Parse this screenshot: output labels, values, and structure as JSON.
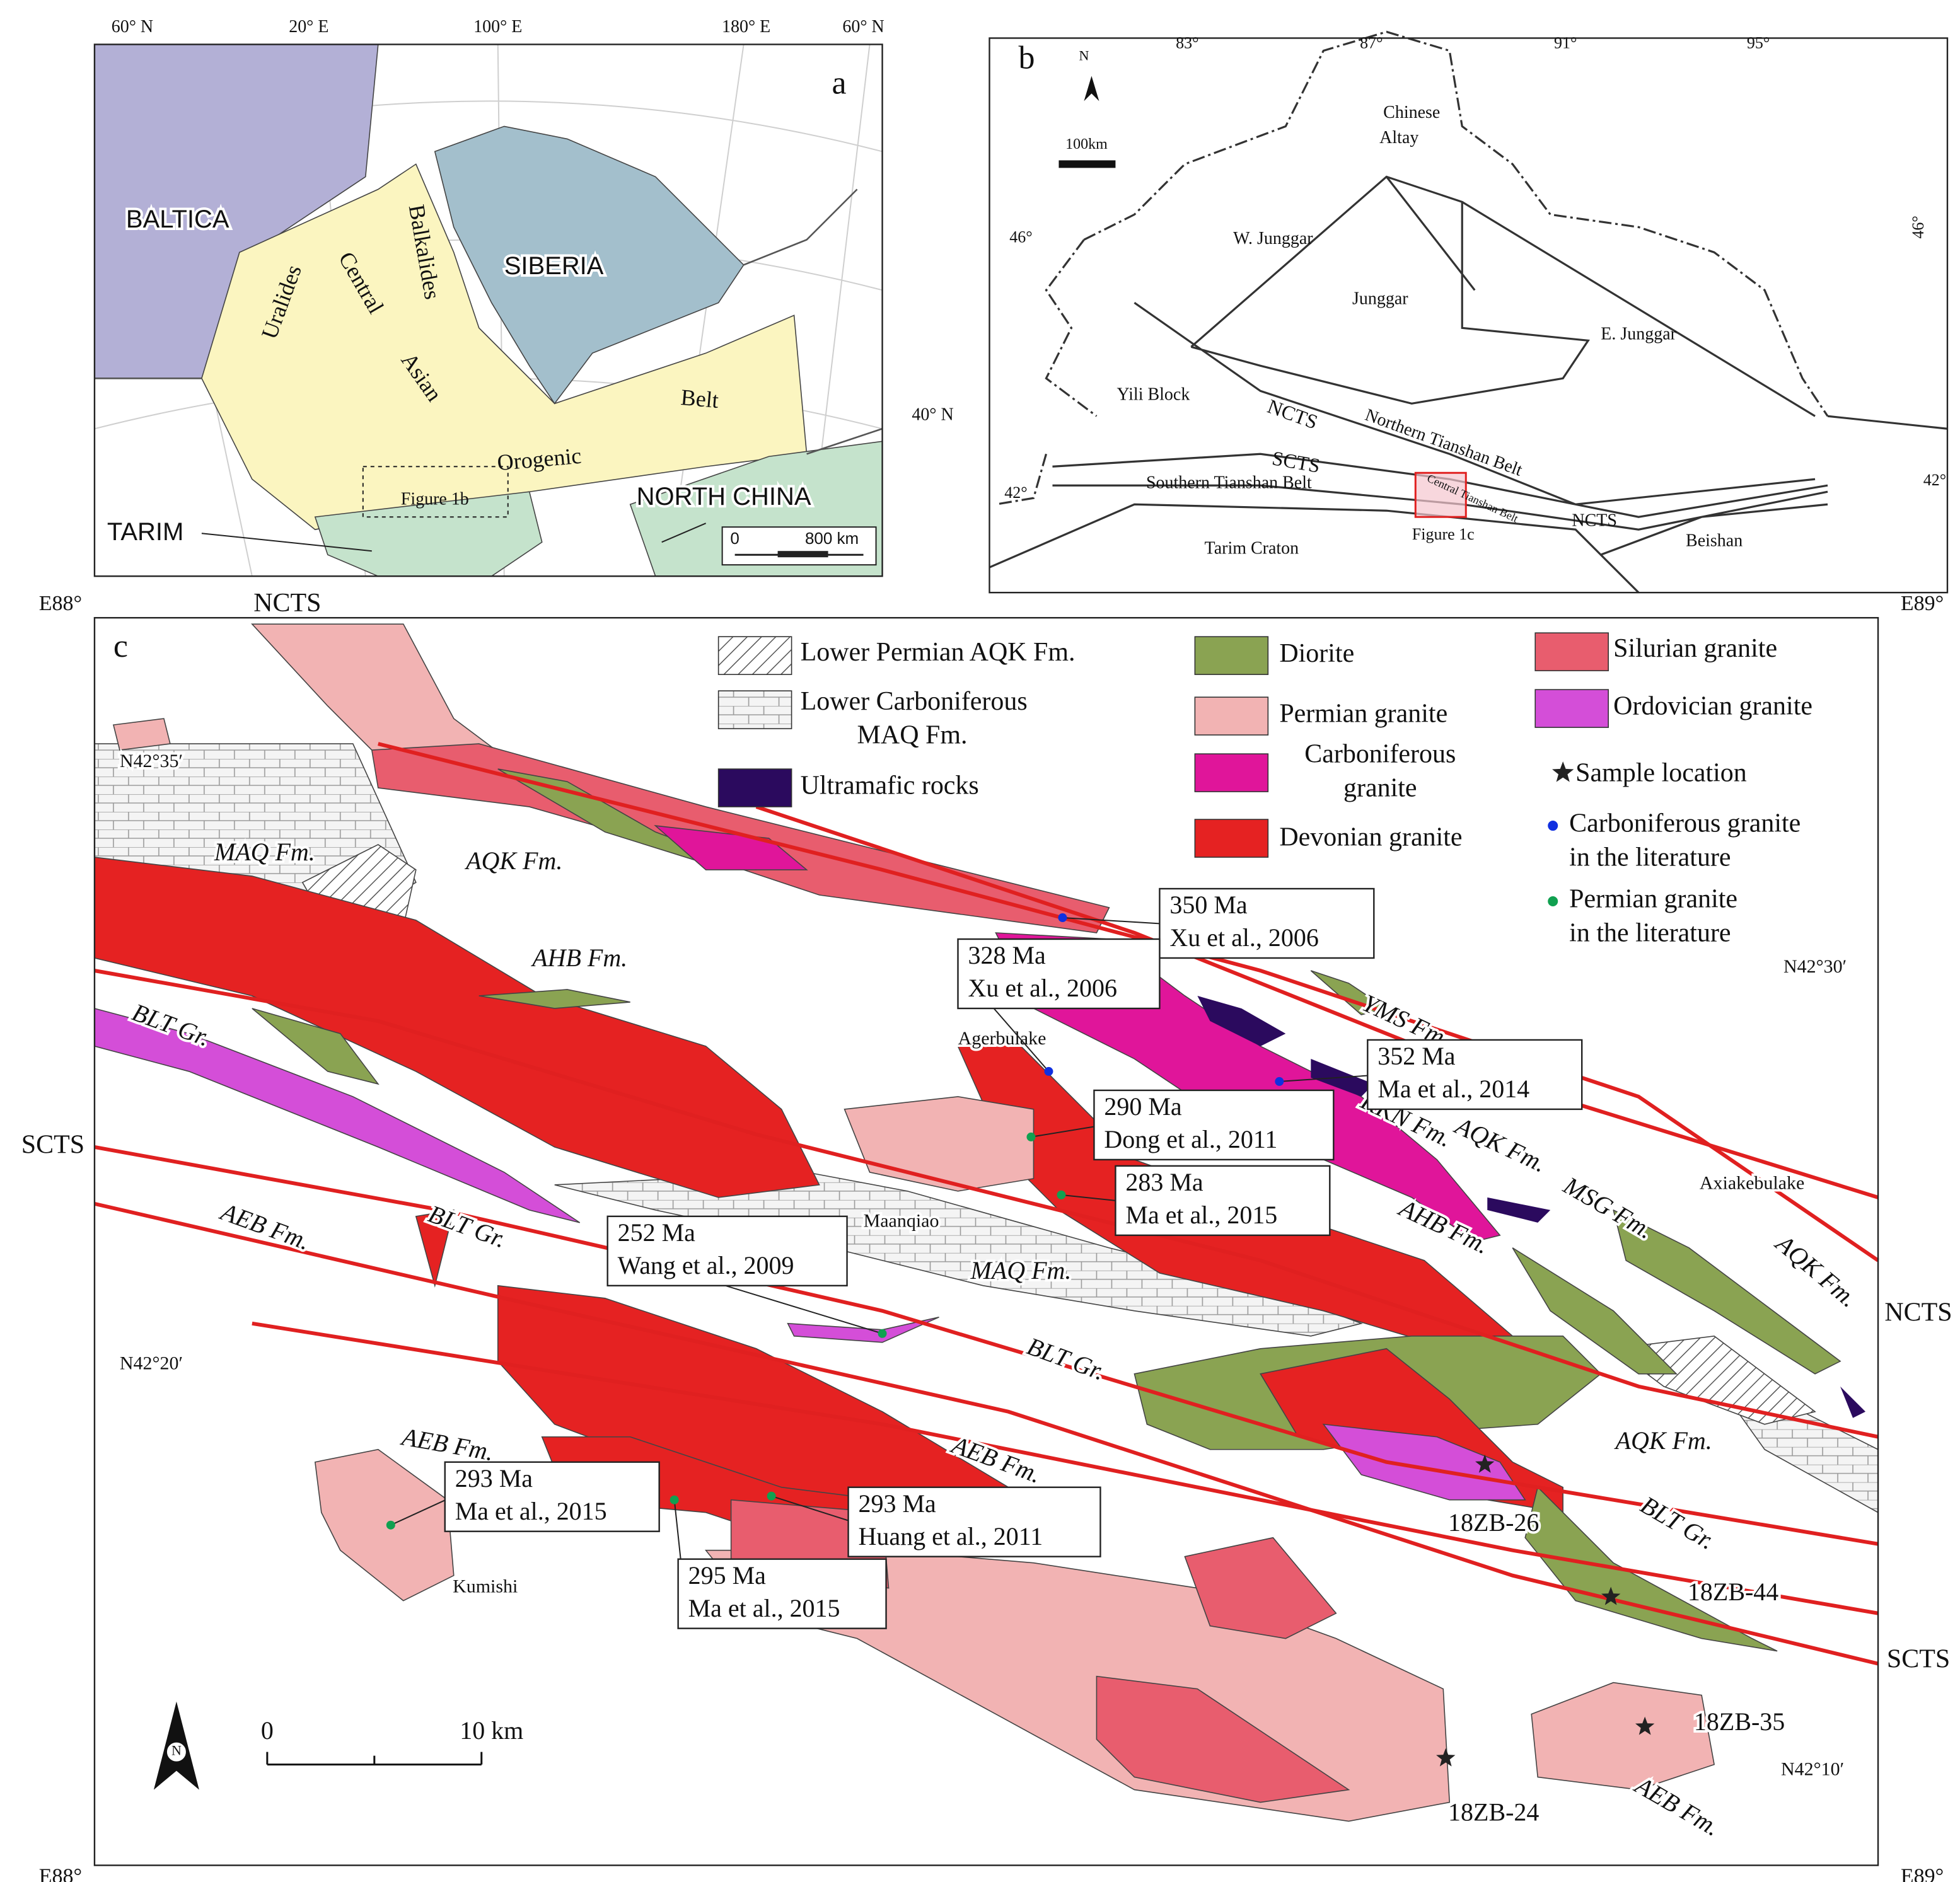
{
  "panel_a": {
    "label": "a",
    "graticule": [
      "60° N",
      "20° E",
      "100° E",
      "180° E",
      "60° N",
      "40° N"
    ],
    "regions": [
      "BALTICA",
      "SIBERIA",
      "TARIM",
      "NORTH CHINA"
    ],
    "belt": [
      "Uralides",
      "Central",
      "Asian",
      "Orogenic",
      "Belt",
      "Balkalides"
    ],
    "inset": "Figure 1b",
    "scale": [
      "0",
      "800 km"
    ]
  },
  "panel_b": {
    "label": "b",
    "north": "N",
    "scale": "100km",
    "longitudes": [
      "83°",
      "87°",
      "91°",
      "95°"
    ],
    "latitudes": [
      "46°",
      "42°",
      "46°",
      "42°"
    ],
    "units": [
      "Chinese",
      "Altay",
      "W. Junggar",
      "Junggar",
      "E. Junggar",
      "Yili Block",
      "NCTS",
      "SCTS",
      "Northern Tianshan Belt",
      "Southern Tianshan Belt",
      "Central Tianshan Belt",
      "NCTS",
      "Tarim Craton",
      "Beishan"
    ],
    "inset": "Figure 1c"
  },
  "panel_c": {
    "label": "c",
    "corners": [
      "E88°",
      "E89°",
      "E88°",
      "E89°"
    ],
    "latitudes": [
      "N42°35′",
      "N42°30′",
      "N42°20′",
      "N42°10′"
    ],
    "faults": [
      "NCTS",
      "SCTS",
      "NCTS",
      "SCTS"
    ],
    "legend": [
      {
        "lines": [
          "Lower Permian AQK Fm."
        ],
        "symbol": "hatch",
        "color": "#ffffff"
      },
      {
        "lines": [
          "Lower Carboniferous",
          "MAQ Fm."
        ],
        "symbol": "brick",
        "color": "#ffffff"
      },
      {
        "lines": [
          "Ultramafic rocks"
        ],
        "symbol": "swatch",
        "color": "#2b0a5e"
      },
      {
        "lines": [
          "Diorite"
        ],
        "symbol": "swatch",
        "color": "#8aa352"
      },
      {
        "lines": [
          "Permian granite"
        ],
        "symbol": "swatch",
        "color": "#f2b3b3"
      },
      {
        "lines": [
          "Carboniferous",
          "granite"
        ],
        "symbol": "swatch",
        "color": "#e0159a"
      },
      {
        "lines": [
          "Devonian granite"
        ],
        "symbol": "swatch",
        "color": "#e52222"
      },
      {
        "lines": [
          "Silurian granite"
        ],
        "symbol": "swatch",
        "color": "#e85d6e"
      },
      {
        "lines": [
          "Ordovician granite"
        ],
        "symbol": "swatch",
        "color": "#d44ed8"
      },
      {
        "lines": [
          "Sample location"
        ],
        "symbol": "star",
        "color": "#222222"
      },
      {
        "lines": [
          "Carboniferous granite",
          "in the literature"
        ],
        "symbol": "dot",
        "color": "#1030e0"
      },
      {
        "lines": [
          "Permian granite",
          "in the literature"
        ],
        "symbol": "dot",
        "color": "#10a050"
      }
    ],
    "formations": [
      "MAQ Fm.",
      "AQK Fm.",
      "AHB Fm.",
      "BLT Gr.",
      "BLT Gr.",
      "AEB Fm.",
      "MAQ Fm.",
      "YMS Fm.",
      "AQK Fm.",
      "KKN Fm.",
      "MSG Fm.",
      "AQK Fm.",
      "AHB Fm.",
      "BLT Gr.",
      "AEB Fm.",
      "AQK Fm.",
      "AEB Fm.",
      "BLT Gr.",
      "AEB Fm."
    ],
    "places": [
      "Agerbulake",
      "Maanqiao",
      "Axiakebulake",
      "Kumishi"
    ],
    "ages": [
      {
        "age": "350 Ma",
        "ref": "Xu et al., 2006"
      },
      {
        "age": "328 Ma",
        "ref": "Xu et al., 2006"
      },
      {
        "age": "352 Ma",
        "ref": "Ma et al., 2014"
      },
      {
        "age": "290 Ma",
        "ref": "Dong et al., 2011"
      },
      {
        "age": "283 Ma",
        "ref": "Ma et al., 2015"
      },
      {
        "age": "252 Ma",
        "ref": "Wang et al., 2009"
      },
      {
        "age": "293 Ma",
        "ref": "Ma et al., 2015"
      },
      {
        "age": "293 Ma",
        "ref": "Huang et al., 2011"
      },
      {
        "age": "295 Ma",
        "ref": "Ma et al., 2015"
      }
    ],
    "samples": [
      "18ZB-26",
      "18ZB-44",
      "18ZB-35",
      "18ZB-24"
    ],
    "scale": [
      "0",
      "10 km"
    ],
    "north": "N"
  }
}
